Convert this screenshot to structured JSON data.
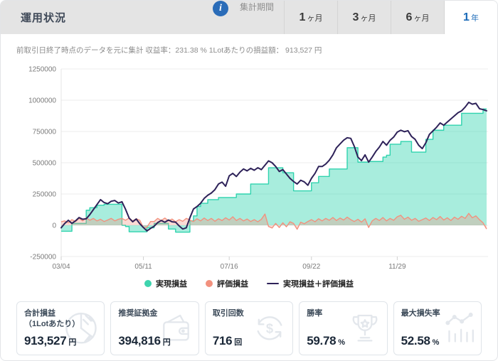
{
  "header": {
    "title": "運用状況",
    "period_label": "集計期間",
    "info_label": "i",
    "accent_blue": "#1a6ab8",
    "tabs": [
      {
        "num": "1",
        "unit": "ヶ月",
        "active": false
      },
      {
        "num": "3",
        "unit": "ヶ月",
        "active": false
      },
      {
        "num": "6",
        "unit": "ヶ月",
        "active": false
      },
      {
        "num": "1",
        "unit": "年",
        "active": true
      }
    ]
  },
  "subtitle": {
    "text": "前取引日終了時点のデータを元に集計 収益率：231.38 % 1Lotあたりの損益額： 913,527 円"
  },
  "chart_data": {
    "type": "area",
    "title": "",
    "xlabel": "",
    "ylabel": "",
    "ylim": [
      -250000,
      1250000
    ],
    "grid": true,
    "legend_position": "bottom",
    "y_ticks": [
      1250000,
      1000000,
      750000,
      500000,
      250000,
      0,
      -250000
    ],
    "x_tick_labels": [
      "03/04",
      "05/11",
      "07/16",
      "09/22",
      "11/29"
    ],
    "x_tick_indices": [
      0,
      23,
      47,
      70,
      94
    ],
    "series": [
      {
        "name": "実現損益",
        "color": "#2fd3ae",
        "fill_color": "rgba(47,211,174,0.42)",
        "style": "step-area",
        "values": [
          -48000,
          -48000,
          -48000,
          15000,
          15000,
          15000,
          15000,
          120000,
          140000,
          140000,
          160000,
          160000,
          168000,
          168000,
          168000,
          168000,
          168000,
          0,
          -10000,
          -52000,
          -52000,
          -52000,
          -52000,
          -52000,
          -20000,
          -20000,
          15000,
          15000,
          15000,
          15000,
          -30000,
          -30000,
          -55000,
          -55000,
          -55000,
          -55000,
          35000,
          75000,
          150000,
          176000,
          176000,
          205000,
          205000,
          205000,
          222000,
          222000,
          222000,
          222000,
          222000,
          250000,
          250000,
          250000,
          250000,
          330000,
          330000,
          330000,
          330000,
          330000,
          460000,
          460000,
          460000,
          460000,
          420000,
          420000,
          420000,
          275000,
          275000,
          275000,
          275000,
          275000,
          340000,
          340000,
          390000,
          390000,
          390000,
          450000,
          450000,
          450000,
          450000,
          450000,
          620000,
          620000,
          620000,
          505000,
          505000,
          505000,
          510000,
          510000,
          510000,
          510000,
          545000,
          560000,
          648000,
          648000,
          648000,
          670000,
          670000,
          670000,
          585000,
          585000,
          585000,
          585000,
          687000,
          687000,
          760000,
          760000,
          760000,
          800000,
          800000,
          800000,
          800000,
          800000,
          895000,
          895000,
          895000,
          895000,
          895000,
          895000,
          930000,
          930000
        ]
      },
      {
        "name": "評価損益",
        "color": "#f2917e",
        "fill_color": "rgba(242,145,126,0.33)",
        "style": "area",
        "values": [
          28000,
          35000,
          20000,
          45000,
          30000,
          55000,
          35000,
          60000,
          40000,
          55000,
          35000,
          48000,
          30000,
          42000,
          55000,
          35000,
          48000,
          55000,
          40000,
          58000,
          35000,
          52000,
          40000,
          -20000,
          -15000,
          30000,
          30000,
          55000,
          38000,
          58000,
          35000,
          50000,
          28000,
          45000,
          32000,
          55000,
          42000,
          30000,
          52000,
          35000,
          58000,
          38000,
          55000,
          32000,
          52000,
          38000,
          60000,
          42000,
          68000,
          38000,
          55000,
          35000,
          50000,
          30000,
          45000,
          28000,
          48000,
          90000,
          -10000,
          -22000,
          15000,
          -18000,
          20000,
          -12000,
          28000,
          15000,
          -32000,
          25000,
          12000,
          30000,
          45000,
          28000,
          52000,
          35000,
          55000,
          40000,
          62000,
          38000,
          58000,
          42000,
          65000,
          45000,
          30000,
          48000,
          25000,
          52000,
          -18000,
          35000,
          55000,
          38000,
          62000,
          35000,
          55000,
          40000,
          68000,
          80000,
          48000,
          65000,
          40000,
          55000,
          32000,
          45000,
          58000,
          38000,
          62000,
          45000,
          70000,
          42000,
          60000,
          38000,
          65000,
          48000,
          72000,
          55000,
          95000,
          60000,
          75000,
          45000,
          20000,
          -30000
        ]
      },
      {
        "name": "実現損益＋評価損益",
        "color": "#2e2259",
        "style": "line",
        "values": [
          -20000,
          15000,
          40000,
          15000,
          35000,
          62000,
          48000,
          52000,
          85000,
          125000,
          165000,
          205000,
          182000,
          172000,
          192000,
          198000,
          178000,
          188000,
          128000,
          58000,
          28000,
          50000,
          12000,
          -18000,
          -45000,
          -25000,
          -8000,
          22000,
          38000,
          24000,
          42000,
          28000,
          25000,
          -5000,
          -30000,
          -20000,
          60000,
          130000,
          150000,
          176000,
          215000,
          240000,
          258000,
          285000,
          330000,
          345000,
          312000,
          395000,
          415000,
          390000,
          425000,
          450000,
          435000,
          455000,
          440000,
          460000,
          445000,
          480000,
          515000,
          500000,
          470000,
          430000,
          445000,
          410000,
          375000,
          350000,
          330000,
          360000,
          347000,
          320000,
          375000,
          415000,
          470000,
          470000,
          490000,
          520000,
          563000,
          620000,
          650000,
          680000,
          700000,
          695000,
          630000,
          545000,
          517000,
          563000,
          505000,
          545000,
          590000,
          625000,
          670000,
          640000,
          680000,
          705000,
          745000,
          760000,
          748000,
          756000,
          710000,
          687000,
          640000,
          613000,
          660000,
          727000,
          755000,
          784000,
          818000,
          800000,
          825000,
          850000,
          875000,
          900000,
          915000,
          945000,
          983000,
          968000,
          975000,
          932000,
          925000,
          915000
        ]
      }
    ]
  },
  "stats": [
    {
      "label": "合計損益",
      "label2": "（1Lotあたり）",
      "value": "913,527",
      "unit": "円",
      "icon": "pie-chart-icon"
    },
    {
      "label": "推奨証拠金",
      "value": "394,816",
      "unit": "円",
      "icon": "wallet-icon"
    },
    {
      "label": "取引回数",
      "value": "716",
      "unit": "回",
      "icon": "currency-cycle-icon"
    },
    {
      "label": "勝率",
      "value": "59.78",
      "unit": "%",
      "icon": "trophy-icon"
    },
    {
      "label": "最大損失率",
      "value": "52.58",
      "unit": "%",
      "icon": "bar-chart-icon"
    }
  ]
}
